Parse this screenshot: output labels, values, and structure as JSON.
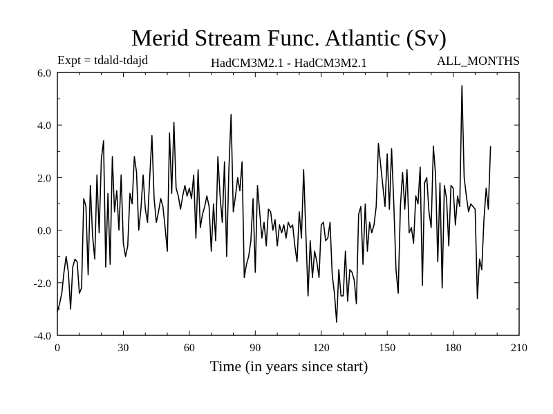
{
  "chart_data": {
    "type": "line",
    "title": "Merid Stream Func. Atlantic (Sv)",
    "subtitle_left": "Expt = tdald-tdajd",
    "subtitle_center": "HadCM3M2.1 - HadCM3M2.1",
    "subtitle_right": "ALL_MONTHS",
    "xlabel": "Time (in years since start)",
    "ylabel": "",
    "xlim": [
      0,
      210
    ],
    "ylim": [
      -4.0,
      6.0
    ],
    "x_ticks": [
      0,
      30,
      60,
      90,
      120,
      150,
      180,
      210
    ],
    "y_ticks": [
      -4.0,
      -2.0,
      0.0,
      2.0,
      4.0,
      6.0
    ],
    "x_tick_labels": [
      "0",
      "30",
      "60",
      "90",
      "120",
      "150",
      "180",
      "210"
    ],
    "y_tick_labels": [
      "-4.0",
      "-2.0",
      "0.0",
      "2.0",
      "4.0",
      "6.0"
    ],
    "line_color": "#000000",
    "series": [
      {
        "name": "tdald-tdajd",
        "x_start": 0,
        "x_step": 1,
        "values": [
          -3.1,
          -2.8,
          -2.4,
          -1.6,
          -1.0,
          -1.6,
          -3.0,
          -1.4,
          -1.1,
          -1.2,
          -2.4,
          -2.2,
          1.2,
          0.9,
          -1.7,
          1.7,
          -0.2,
          -1.1,
          2.1,
          -0.1,
          2.7,
          3.4,
          -1.4,
          1.4,
          -1.3,
          2.8,
          0.7,
          1.5,
          0.0,
          2.1,
          -0.5,
          -1.0,
          -0.6,
          1.4,
          1.0,
          2.8,
          2.2,
          0.0,
          0.8,
          2.1,
          0.8,
          0.3,
          2.0,
          3.6,
          1.2,
          0.3,
          0.7,
          1.2,
          0.9,
          0.1,
          -0.8,
          3.7,
          1.4,
          4.1,
          1.6,
          1.3,
          0.8,
          1.3,
          1.7,
          1.3,
          1.6,
          1.2,
          2.1,
          -0.3,
          2.3,
          0.1,
          0.6,
          0.9,
          1.3,
          0.9,
          -0.8,
          1.0,
          -0.4,
          2.8,
          1.3,
          0.3,
          2.6,
          -1.0,
          2.3,
          4.4,
          0.7,
          1.3,
          2.0,
          1.5,
          2.6,
          -1.8,
          -1.3,
          -1.0,
          -0.4,
          1.2,
          -1.6,
          1.7,
          0.7,
          -0.3,
          0.3,
          -0.6,
          0.8,
          0.7,
          0.0,
          0.4,
          -0.6,
          0.2,
          -0.1,
          0.2,
          -0.3,
          0.3,
          0.1,
          0.2,
          -0.6,
          -1.2,
          0.7,
          -0.3,
          2.3,
          -0.1,
          -2.5,
          -0.4,
          -1.8,
          -0.8,
          -1.2,
          -1.8,
          0.2,
          0.3,
          -0.4,
          -0.3,
          0.3,
          -1.7,
          -2.4,
          -3.5,
          -1.5,
          -2.5,
          -2.5,
          -0.8,
          -2.7,
          -1.5,
          -1.6,
          -1.9,
          -2.8,
          0.6,
          0.9,
          -1.3,
          1.0,
          -0.8,
          0.3,
          -0.1,
          0.2,
          0.9,
          3.3,
          2.5,
          1.7,
          0.9,
          2.9,
          0.8,
          3.1,
          1.0,
          -1.5,
          -2.4,
          0.9,
          2.2,
          0.8,
          2.3,
          -0.1,
          0.1,
          -0.5,
          1.3,
          1.0,
          2.4,
          -2.1,
          1.8,
          2.0,
          0.7,
          0.1,
          3.2,
          2.1,
          -1.2,
          1.8,
          -2.2,
          1.7,
          1.2,
          -0.6,
          1.7,
          1.6,
          0.2,
          1.3,
          0.9,
          5.5,
          2.0,
          1.3,
          0.7,
          1.0,
          0.9,
          0.8,
          -2.6,
          -1.1,
          -1.5,
          0.4,
          1.6,
          0.8,
          3.2
        ]
      }
    ]
  }
}
